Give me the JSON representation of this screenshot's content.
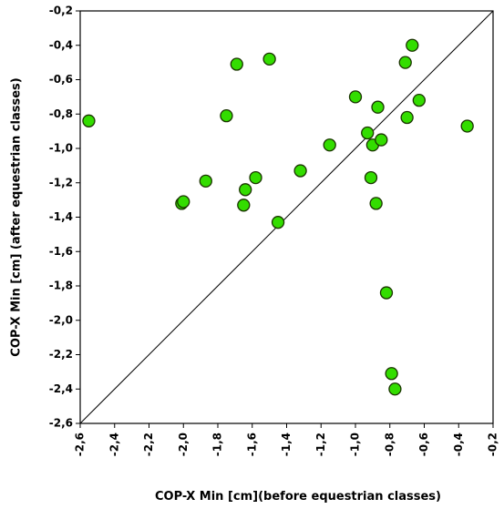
{
  "chart_data": {
    "type": "scatter",
    "xlabel": "COP-X Min [cm](before equestrian classes)",
    "ylabel": "COP-X Min [cm] (after equestrian classes)",
    "xlim": [
      -2.6,
      -0.2
    ],
    "ylim": [
      -2.6,
      -0.2
    ],
    "x_ticks": [
      "-2,6",
      "-2,4",
      "-2,2",
      "-2,0",
      "-1,8",
      "-1,6",
      "-1,4",
      "-1,2",
      "-1,0",
      "-0,8",
      "-0,6",
      "-0,4",
      "-0,2"
    ],
    "y_ticks": [
      "-0,2",
      "-0,4",
      "-0,6",
      "-0,8",
      "-1,0",
      "-1,2",
      "-1,4",
      "-1,6",
      "-1,8",
      "-2,0",
      "-2,2",
      "-2,4",
      "-2,6"
    ],
    "grid": false,
    "diagonal_reference_line": true,
    "marker_color": "#33dd00",
    "marker_edge_color": "#1a3300",
    "points": [
      {
        "x": -2.55,
        "y": -0.84
      },
      {
        "x": -2.01,
        "y": -1.32
      },
      {
        "x": -2.0,
        "y": -1.31
      },
      {
        "x": -1.87,
        "y": -1.19
      },
      {
        "x": -1.75,
        "y": -0.81
      },
      {
        "x": -1.69,
        "y": -0.51
      },
      {
        "x": -1.65,
        "y": -1.33
      },
      {
        "x": -1.64,
        "y": -1.24
      },
      {
        "x": -1.58,
        "y": -1.17
      },
      {
        "x": -1.5,
        "y": -0.48
      },
      {
        "x": -1.45,
        "y": -1.43
      },
      {
        "x": -1.32,
        "y": -1.13
      },
      {
        "x": -1.15,
        "y": -0.98
      },
      {
        "x": -1.0,
        "y": -0.7
      },
      {
        "x": -0.93,
        "y": -0.91
      },
      {
        "x": -0.91,
        "y": -1.17
      },
      {
        "x": -0.9,
        "y": -0.98
      },
      {
        "x": -0.88,
        "y": -1.32
      },
      {
        "x": -0.87,
        "y": -0.76
      },
      {
        "x": -0.85,
        "y": -0.95
      },
      {
        "x": -0.82,
        "y": -1.84
      },
      {
        "x": -0.79,
        "y": -2.31
      },
      {
        "x": -0.77,
        "y": -2.4
      },
      {
        "x": -0.7,
        "y": -0.82
      },
      {
        "x": -0.71,
        "y": -0.5
      },
      {
        "x": -0.67,
        "y": -0.4
      },
      {
        "x": -0.63,
        "y": -0.72
      },
      {
        "x": -0.35,
        "y": -0.87
      }
    ]
  }
}
